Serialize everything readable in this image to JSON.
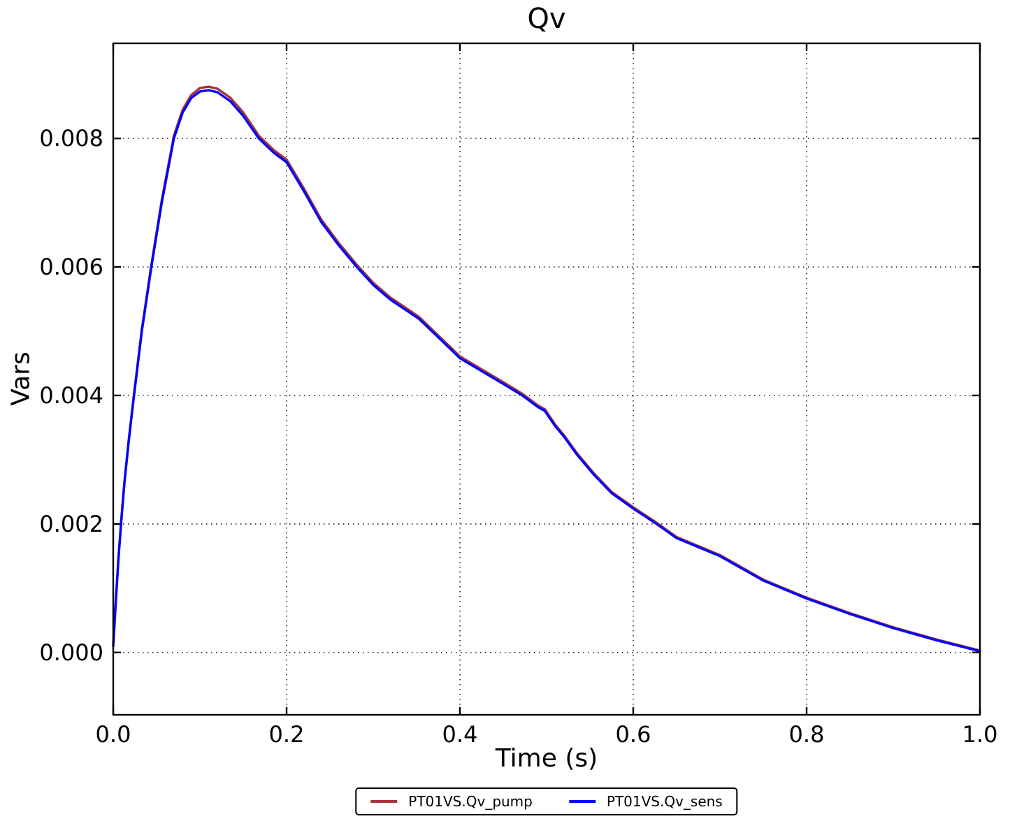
{
  "chart_data": {
    "type": "line",
    "title": "Qv",
    "xlabel": "Time (s)",
    "ylabel": "Vars",
    "xlim": [
      0.0,
      1.0
    ],
    "ylim": [
      -0.00097,
      0.00948
    ],
    "xticks": [
      0.0,
      0.2,
      0.4,
      0.6,
      0.8,
      1.0
    ],
    "xtick_labels": [
      "0.0",
      "0.2",
      "0.4",
      "0.6",
      "0.8",
      "1.0"
    ],
    "yticks": [
      0.0,
      0.002,
      0.004,
      0.006,
      0.008
    ],
    "ytick_labels": [
      "0.000",
      "0.002",
      "0.004",
      "0.006",
      "0.008"
    ],
    "grid": true,
    "grid_style": "dotted",
    "legend_position": "bottom-center",
    "frame_color": "#000000",
    "x": [
      0.0,
      0.003,
      0.006,
      0.009,
      0.013,
      0.018,
      0.024,
      0.033,
      0.044,
      0.056,
      0.07,
      0.08,
      0.09,
      0.1,
      0.11,
      0.12,
      0.135,
      0.15,
      0.168,
      0.185,
      0.2,
      0.22,
      0.24,
      0.26,
      0.281,
      0.3,
      0.32,
      0.353,
      0.38,
      0.4,
      0.43,
      0.45,
      0.472,
      0.49,
      0.498,
      0.51,
      0.52,
      0.535,
      0.555,
      0.575,
      0.6,
      0.627,
      0.65,
      0.7,
      0.75,
      0.8,
      0.85,
      0.9,
      0.95,
      1.0
    ],
    "series": [
      {
        "name": "PT01VS.Qv_pump",
        "color": "#a93439",
        "values": [
          0.00011,
          0.000813,
          0.001466,
          0.002018,
          0.002671,
          0.003323,
          0.004026,
          0.00503,
          0.006034,
          0.007038,
          0.008042,
          0.008444,
          0.008675,
          0.008785,
          0.008805,
          0.008775,
          0.008634,
          0.008403,
          0.008042,
          0.007821,
          0.007671,
          0.007219,
          0.006737,
          0.006375,
          0.006034,
          0.005753,
          0.005522,
          0.005221,
          0.004869,
          0.004608,
          0.004367,
          0.004207,
          0.004026,
          0.003845,
          0.003785,
          0.003544,
          0.003383,
          0.003102,
          0.002781,
          0.0025,
          0.002259,
          0.002018,
          0.001797,
          0.001516,
          0.001134,
          0.000853,
          0.000612,
          0.000392,
          0.000201,
          3e-05
        ]
      },
      {
        "name": "PT01VS.Qv_sens",
        "color": "#0000ff",
        "values": [
          0.0001,
          0.0008,
          0.00145,
          0.002,
          0.00265,
          0.0033,
          0.004,
          0.005,
          0.006,
          0.007,
          0.008,
          0.0084,
          0.00863,
          0.00873,
          0.00875,
          0.00872,
          0.00858,
          0.00835,
          0.008,
          0.00778,
          0.00763,
          0.00718,
          0.0067,
          0.00634,
          0.006,
          0.00572,
          0.00549,
          0.00519,
          0.00484,
          0.00458,
          0.00434,
          0.00418,
          0.004,
          0.00382,
          0.00376,
          0.00352,
          0.00336,
          0.00308,
          0.00276,
          0.00248,
          0.00224,
          0.002,
          0.00178,
          0.0015,
          0.00112,
          0.00084,
          0.0006,
          0.00038,
          0.00019,
          2e-05
        ]
      }
    ],
    "key_points": {
      "peak": {
        "t": 0.11,
        "value": 0.0088
      },
      "kink": {
        "t": 0.5,
        "value": 0.0038
      },
      "end": {
        "t": 1.0,
        "value": 0.0
      }
    }
  }
}
